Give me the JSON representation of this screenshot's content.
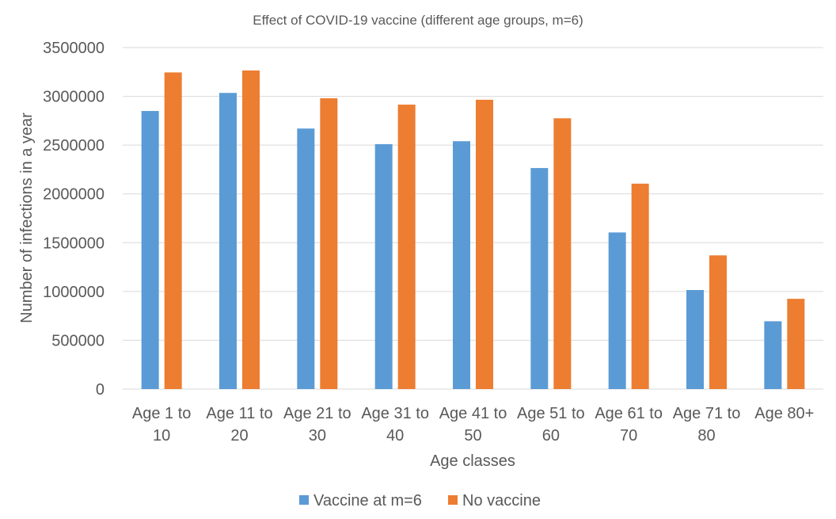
{
  "chart_data": {
    "type": "bar",
    "title": "Effect of COVID-19 vaccine (different age groups, m=6)",
    "xlabel": "Age classes",
    "ylabel": "Number of infections in a year",
    "categories": [
      [
        "Age 1 to",
        "10"
      ],
      [
        "Age 11 to",
        "20"
      ],
      [
        "Age 21 to",
        "30"
      ],
      [
        "Age 31 to",
        "40"
      ],
      [
        "Age 41 to",
        "50"
      ],
      [
        "Age 51 to",
        "60"
      ],
      [
        "Age 61 to",
        "70"
      ],
      [
        "Age 71 to",
        "80"
      ],
      [
        "Age 80+"
      ]
    ],
    "series": [
      {
        "name": "Vaccine at m=6",
        "color": "#5b9bd5",
        "values": [
          2850000,
          3035000,
          2670000,
          2510000,
          2540000,
          2265000,
          1605000,
          1015000,
          695000
        ]
      },
      {
        "name": "No vaccine",
        "color": "#ed7d31",
        "values": [
          3245000,
          3265000,
          2980000,
          2915000,
          2965000,
          2775000,
          2105000,
          1370000,
          925000
        ]
      }
    ],
    "ylim": [
      0,
      3500000
    ],
    "yticks": [
      "0",
      "500000",
      "1000000",
      "1500000",
      "2000000",
      "2500000",
      "3000000",
      "3500000"
    ],
    "grid": true,
    "legend_position": "bottom"
  }
}
